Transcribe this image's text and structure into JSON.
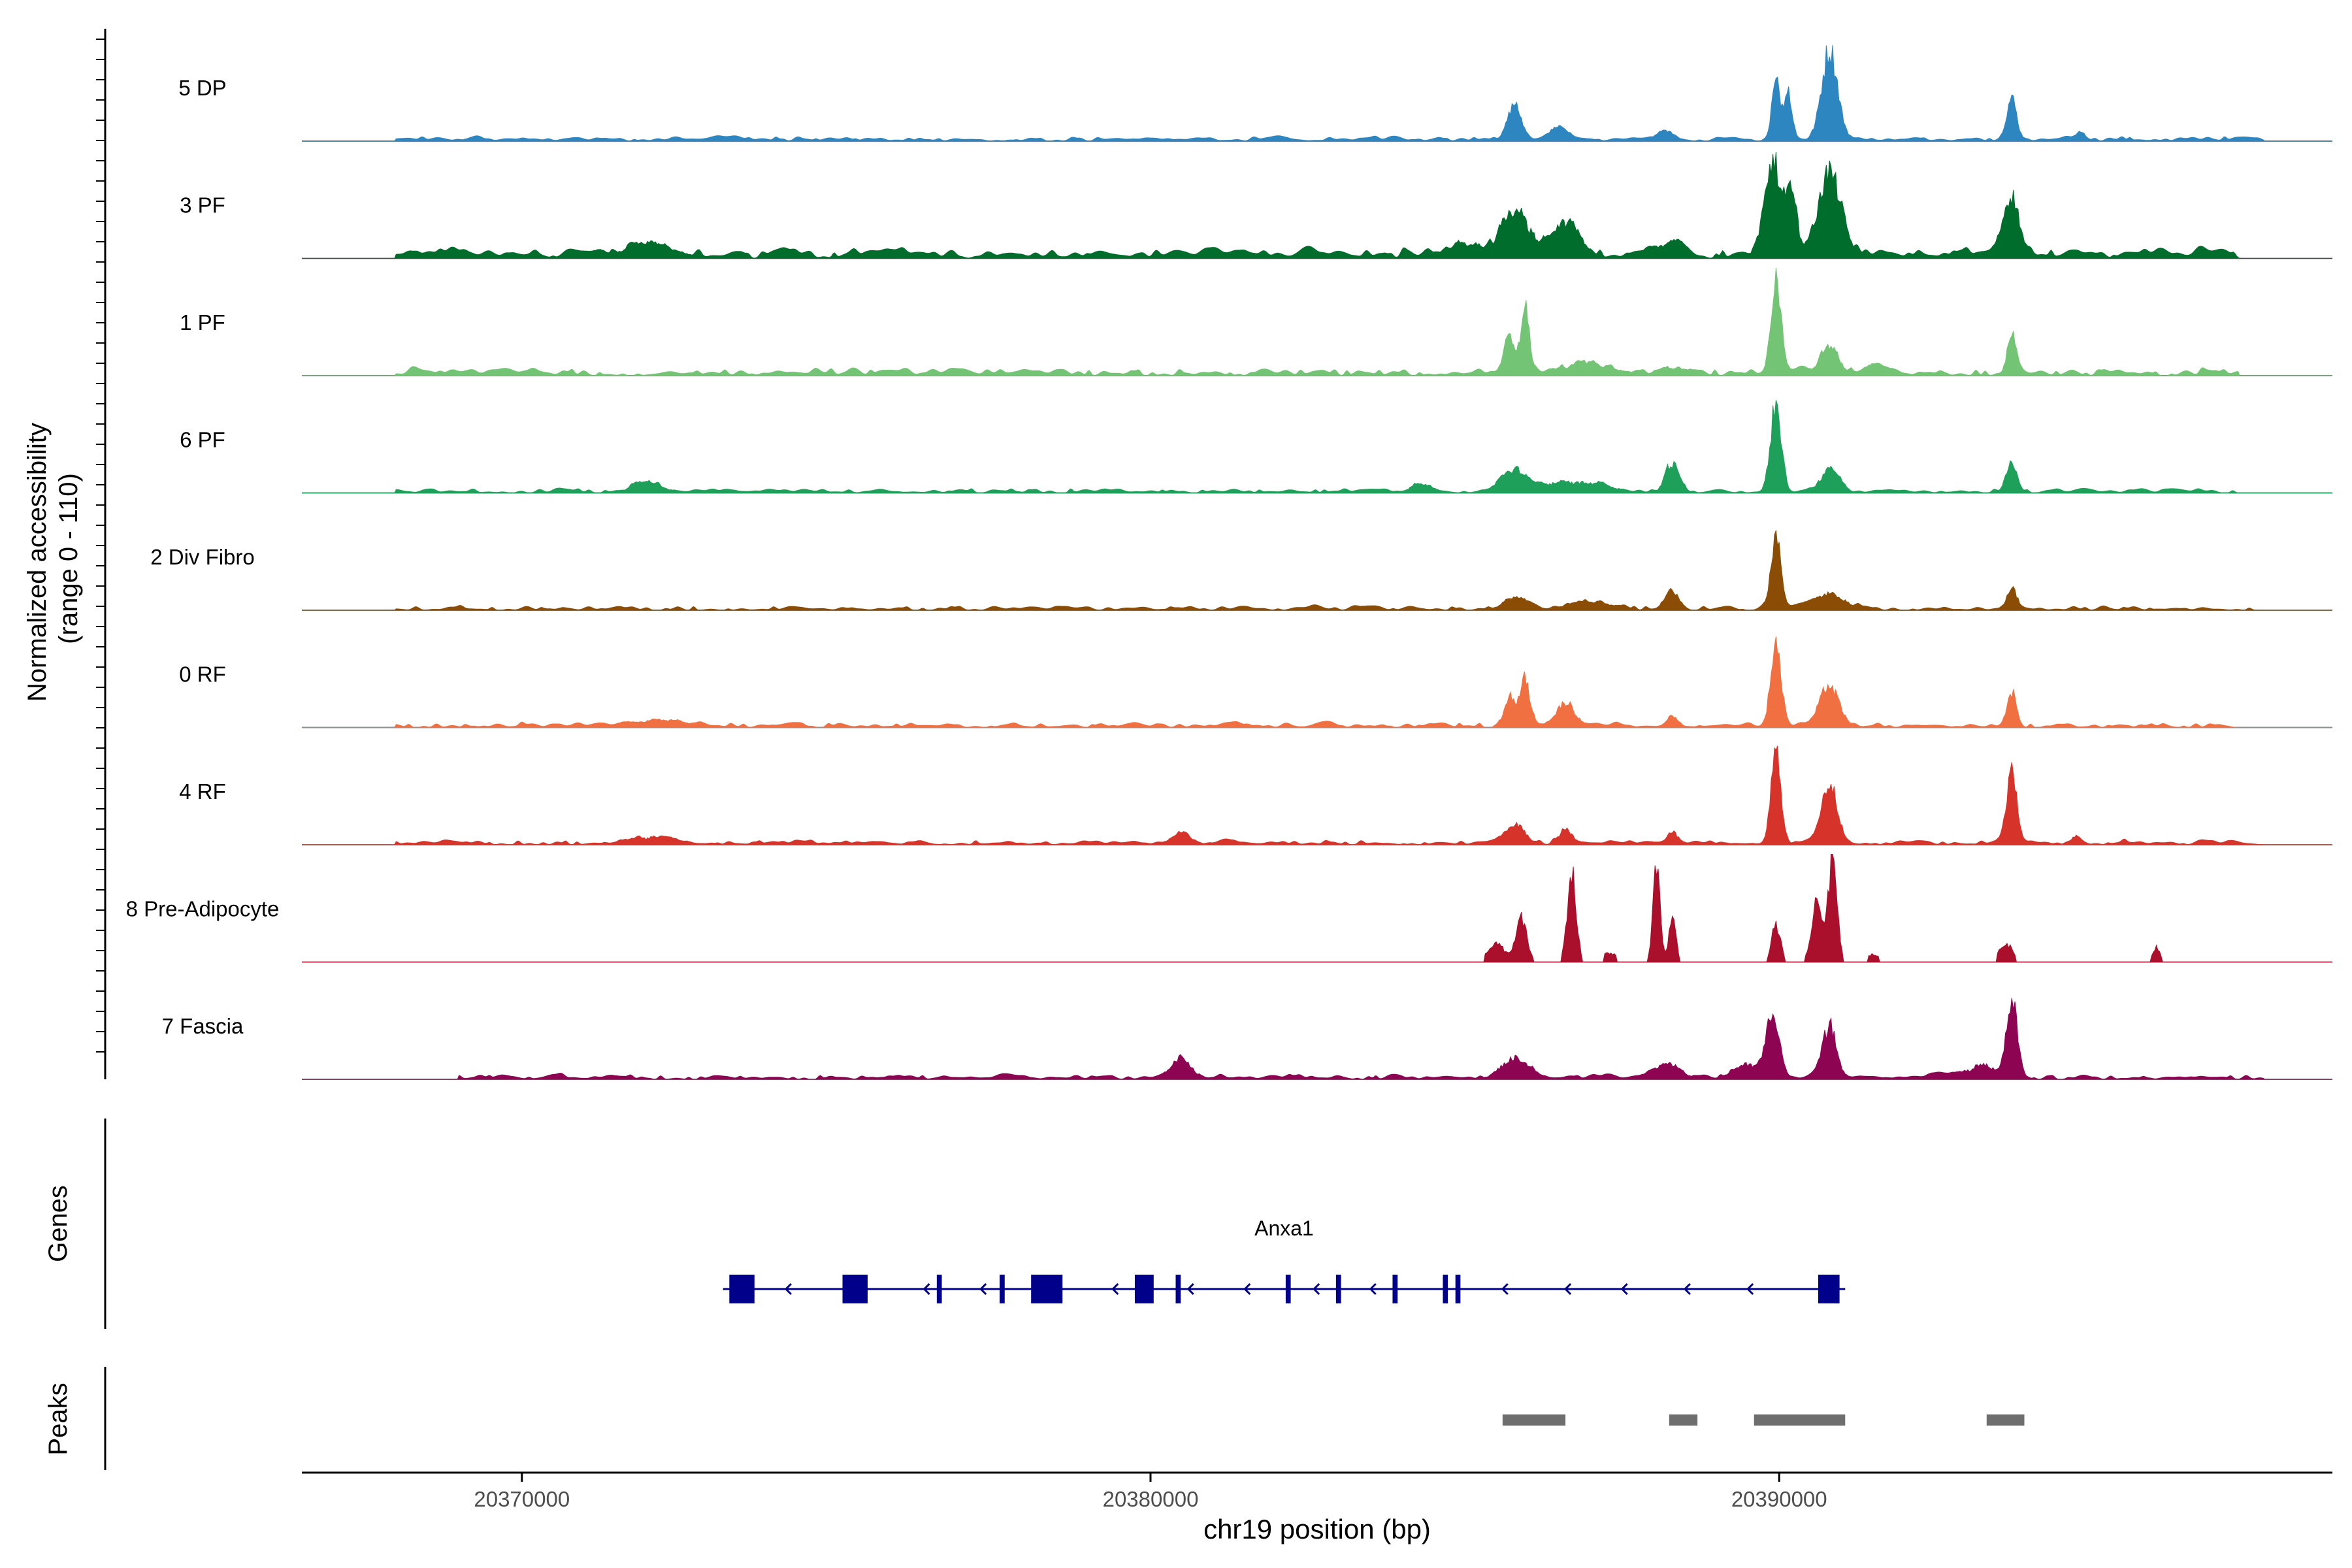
{
  "chart_data": {
    "type": "area",
    "title": "",
    "ylabel": "Normalized accessibility\n(range 0 - 110)",
    "ylabel_lines": [
      "Normalized accessibility",
      "(range 0 - 110)"
    ],
    "xlabel": "chr19 position (bp)",
    "xlim": [
      20366500,
      20398800
    ],
    "ylim": [
      0,
      110
    ],
    "x_ticks": [
      20370000,
      20380000,
      20390000
    ],
    "x_tick_labels": [
      "20370000",
      "20380000",
      "20390000"
    ],
    "tracks": [
      {
        "name": "5 DP",
        "color": "#2e86c1",
        "background_start": 20368000,
        "background_end": 20397700,
        "background_level": 2,
        "spacing": 180,
        "peaks": [
          [
            20385800,
            150,
            35
          ],
          [
            20386500,
            180,
            12
          ],
          [
            20389950,
            100,
            58
          ],
          [
            20390150,
            80,
            50
          ],
          [
            20390800,
            180,
            90
          ],
          [
            20393700,
            110,
            42
          ],
          [
            20388200,
            200,
            8
          ],
          [
            20394800,
            100,
            6
          ]
        ]
      },
      {
        "name": "3 PF",
        "color": "#006d2c",
        "background_start": 20368000,
        "background_end": 20397300,
        "background_level": 4,
        "spacing": 150,
        "peaks": [
          [
            20372000,
            600,
            8
          ],
          [
            20385800,
            300,
            48
          ],
          [
            20386600,
            300,
            32
          ],
          [
            20389900,
            200,
            92
          ],
          [
            20390200,
            120,
            60
          ],
          [
            20390800,
            250,
            84
          ],
          [
            20393700,
            180,
            58
          ],
          [
            20385000,
            400,
            10
          ],
          [
            20388200,
            300,
            10
          ]
        ]
      },
      {
        "name": "1 PF",
        "color": "#74c476",
        "background_start": 20368000,
        "background_end": 20397300,
        "background_level": 3,
        "spacing": 170,
        "peaks": [
          [
            20385950,
            100,
            70
          ],
          [
            20385700,
            100,
            40
          ],
          [
            20387000,
            500,
            10
          ],
          [
            20389950,
            110,
            96
          ],
          [
            20390800,
            200,
            28
          ],
          [
            20393700,
            100,
            38
          ],
          [
            20388300,
            300,
            6
          ],
          [
            20391500,
            300,
            6
          ]
        ]
      },
      {
        "name": "6 PF",
        "color": "#1fa05a",
        "background_start": 20368000,
        "background_end": 20397300,
        "background_level": 2,
        "spacing": 220,
        "peaks": [
          [
            20372000,
            300,
            10
          ],
          [
            20385800,
            300,
            20
          ],
          [
            20386700,
            600,
            10
          ],
          [
            20388300,
            150,
            30
          ],
          [
            20389950,
            120,
            90
          ],
          [
            20390800,
            200,
            25
          ],
          [
            20393700,
            120,
            30
          ],
          [
            20384300,
            250,
            8
          ]
        ]
      },
      {
        "name": "2 Div Fibro",
        "color": "#8b4c05",
        "background_start": 20368000,
        "background_end": 20397700,
        "background_level": 2,
        "spacing": 220,
        "peaks": [
          [
            20388300,
            150,
            20
          ],
          [
            20389950,
            110,
            74
          ],
          [
            20390800,
            300,
            16
          ],
          [
            20393700,
            110,
            22
          ],
          [
            20385800,
            300,
            8
          ],
          [
            20387000,
            400,
            7
          ]
        ]
      },
      {
        "name": "0 RF",
        "color": "#f07042",
        "background_start": 20368000,
        "background_end": 20397300,
        "background_level": 2,
        "spacing": 180,
        "peaks": [
          [
            20385950,
            120,
            48
          ],
          [
            20385700,
            120,
            30
          ],
          [
            20386600,
            200,
            22
          ],
          [
            20389950,
            120,
            86
          ],
          [
            20390800,
            200,
            42
          ],
          [
            20393700,
            100,
            36
          ],
          [
            20388300,
            100,
            10
          ],
          [
            20372200,
            600,
            5
          ]
        ]
      },
      {
        "name": "4 RF",
        "color": "#d6332a",
        "background_start": 20368000,
        "background_end": 20397700,
        "background_level": 2,
        "spacing": 180,
        "peaks": [
          [
            20385800,
            200,
            18
          ],
          [
            20386600,
            150,
            14
          ],
          [
            20388300,
            120,
            12
          ],
          [
            20389950,
            110,
            96
          ],
          [
            20390800,
            180,
            62
          ],
          [
            20393700,
            120,
            74
          ],
          [
            20380500,
            200,
            10
          ],
          [
            20372000,
            500,
            6
          ],
          [
            20394700,
            100,
            8
          ]
        ]
      },
      {
        "name": "8 Pre-Adipocyte",
        "color": "#aa0f2b",
        "background_start": 20369500,
        "background_end": 20396500,
        "background_level": 0,
        "spacing": 500,
        "peaks": [
          [
            20386700,
            100,
            92
          ],
          [
            20388050,
            80,
            100
          ],
          [
            20388300,
            80,
            44
          ],
          [
            20390850,
            100,
            103
          ],
          [
            20390600,
            120,
            60
          ],
          [
            20389950,
            100,
            38
          ],
          [
            20385900,
            120,
            44
          ],
          [
            20385500,
            200,
            18
          ],
          [
            20393600,
            150,
            20
          ],
          [
            20396000,
            80,
            16
          ],
          [
            20391500,
            150,
            8
          ],
          [
            20387300,
            150,
            10
          ]
        ]
      },
      {
        "name": "7 Fascia",
        "color": "#8d0453",
        "background_start": 20369000,
        "background_end": 20397700,
        "background_level": 2,
        "spacing": 170,
        "peaks": [
          [
            20389900,
            150,
            64
          ],
          [
            20390800,
            150,
            54
          ],
          [
            20393700,
            120,
            76
          ],
          [
            20380500,
            200,
            20
          ],
          [
            20385800,
            300,
            20
          ],
          [
            20388200,
            300,
            12
          ],
          [
            20389500,
            300,
            14
          ],
          [
            20393200,
            300,
            12
          ]
        ]
      }
    ],
    "genes": {
      "title": "Genes",
      "label": "Anxa1",
      "strand": "-",
      "start": 20373200,
      "end": 20391050,
      "exons": [
        [
          20373300,
          20373700
        ],
        [
          20375100,
          20375500
        ],
        [
          20376600,
          20376680
        ],
        [
          20377600,
          20377680
        ],
        [
          20378100,
          20378600
        ],
        [
          20379750,
          20380050
        ],
        [
          20380400,
          20380480
        ],
        [
          20382150,
          20382230
        ],
        [
          20382950,
          20383030
        ],
        [
          20383850,
          20383930
        ],
        [
          20384650,
          20384730
        ],
        [
          20384850,
          20384930
        ],
        [
          20390620,
          20390960
        ]
      ],
      "arrows": [
        20374200,
        20376400,
        20377300,
        20379400,
        20380600,
        20381500,
        20382600,
        20383500,
        20385600,
        20386600,
        20387500,
        20388500,
        20389500
      ]
    },
    "peaks": {
      "title": "Peaks",
      "regions": [
        [
          20385600,
          20386600
        ],
        [
          20388250,
          20388700
        ],
        [
          20389600,
          20391050
        ],
        [
          20393300,
          20393900
        ]
      ]
    }
  }
}
